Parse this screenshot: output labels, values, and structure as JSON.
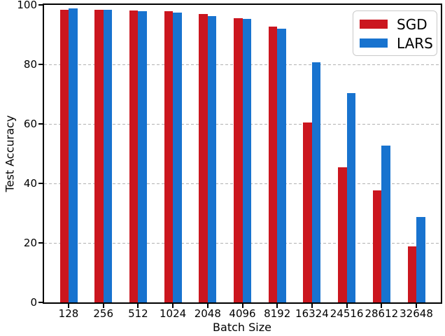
{
  "chart_data": {
    "type": "bar",
    "title": "",
    "xlabel": "Batch Size",
    "ylabel": "Test Accuracy",
    "categories": [
      "128",
      "256",
      "512",
      "1024",
      "2048",
      "4096",
      "8192",
      "16324",
      "24516",
      "28612",
      "32648"
    ],
    "series": [
      {
        "name": "SGD",
        "color": "#cb161f",
        "values": [
          98.4,
          98.4,
          98.2,
          97.9,
          96.9,
          95.5,
          92.6,
          60.4,
          45.5,
          37.6,
          18.9
        ]
      },
      {
        "name": "LARS",
        "color": "#1873cf",
        "values": [
          98.9,
          98.4,
          97.9,
          97.5,
          96.2,
          95.2,
          91.9,
          80.6,
          70.4,
          52.7,
          28.8
        ]
      }
    ],
    "ylim": [
      0,
      100
    ],
    "yticks": [
      0,
      20,
      40,
      60,
      80,
      100
    ],
    "grid": "horizontal-dashed",
    "legend_position": "upper right"
  },
  "colors": {
    "grid": "#b2b2b2",
    "spine": "#000000",
    "background": "#ffffff"
  }
}
